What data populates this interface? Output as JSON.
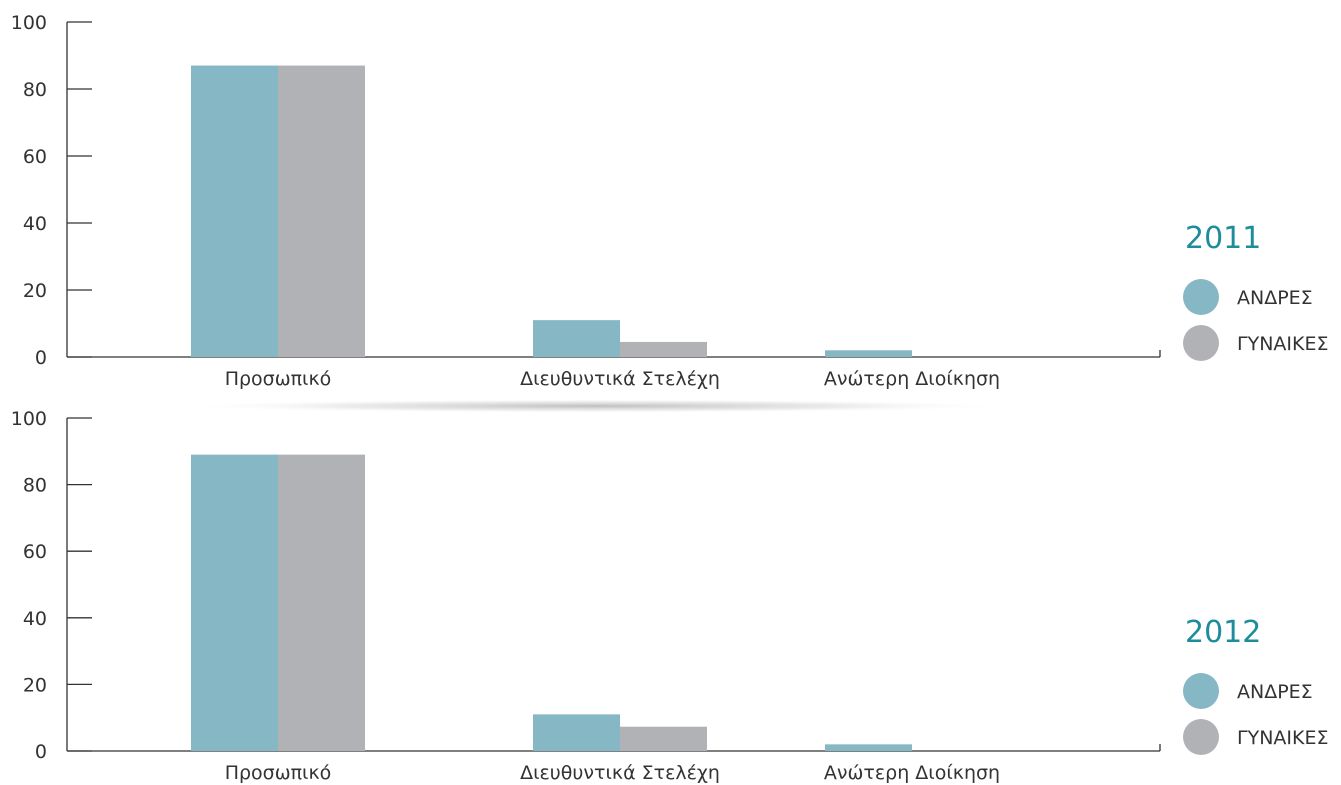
{
  "colors": {
    "men": "#85b7c4",
    "women": "#b1b2b6",
    "accent": "#1d8c9b",
    "axis": "#333333",
    "text": "#333333"
  },
  "chart_data": [
    {
      "type": "bar",
      "year": "2011",
      "categories": [
        "Προσωπικό",
        "Διευθυντικά Στελέχη",
        "Ανώτερη Διοίκηση"
      ],
      "series": [
        {
          "name": "ΑΝΔΡΕΣ",
          "values": [
            87,
            11,
            2
          ]
        },
        {
          "name": "ΓΥΝΑΙΚΕΣ",
          "values": [
            87,
            4.5,
            0
          ]
        }
      ],
      "yticks": [
        "0",
        "20",
        "40",
        "60",
        "80",
        "100"
      ],
      "ylim": [
        0,
        100
      ],
      "grid": false,
      "legend_position": "right"
    },
    {
      "type": "bar",
      "year": "2012",
      "categories": [
        "Προσωπικό",
        "Διευθυντικά Στελέχη",
        "Ανώτερη Διοίκηση"
      ],
      "series": [
        {
          "name": "ΑΝΔΡΕΣ",
          "values": [
            89,
            11,
            2
          ]
        },
        {
          "name": "ΓΥΝΑΙΚΕΣ",
          "values": [
            89,
            7.3,
            0
          ]
        }
      ],
      "yticks": [
        "0",
        "20",
        "40",
        "60",
        "80",
        "100"
      ],
      "ylim": [
        0,
        100
      ],
      "grid": false,
      "legend_position": "right"
    }
  ]
}
